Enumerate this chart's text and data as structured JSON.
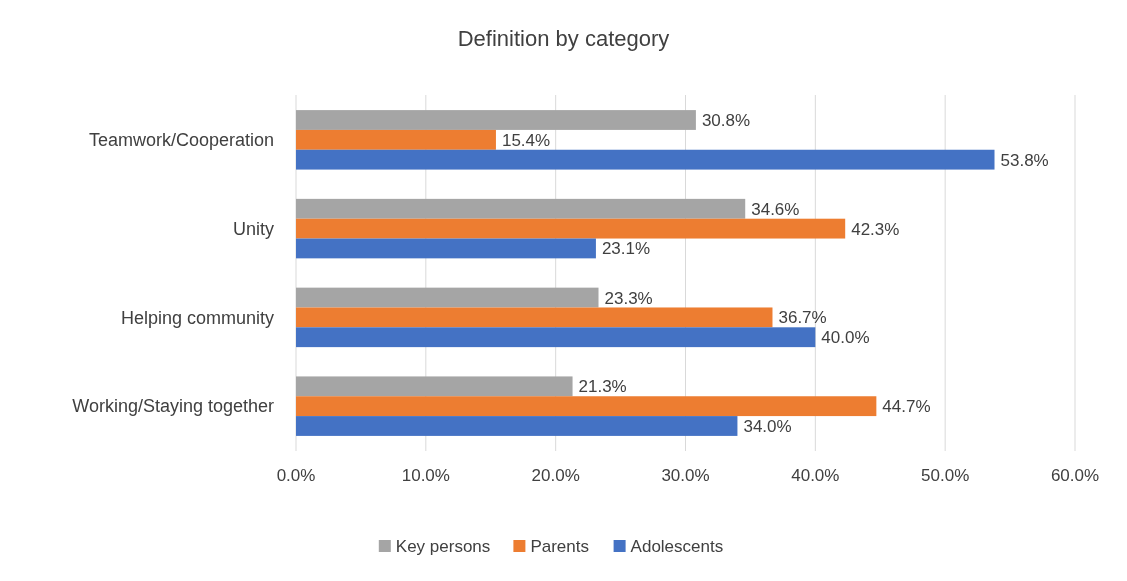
{
  "chart_data": {
    "type": "bar",
    "orientation": "horizontal",
    "title": "Definition by category",
    "categories": [
      "Teamwork/Cooperation",
      "Unity",
      "Helping community",
      "Working/Staying together"
    ],
    "series": [
      {
        "name": "Key persons",
        "color": "#a5a5a5",
        "values": [
          30.8,
          34.6,
          23.3,
          21.3
        ],
        "value_labels": [
          "30.8%",
          "34.6%",
          "23.3%",
          "21.3%"
        ]
      },
      {
        "name": "Parents",
        "color": "#ed7d31",
        "values": [
          15.4,
          42.3,
          36.7,
          44.7
        ],
        "value_labels": [
          "15.4%",
          "42.3%",
          "36.7%",
          "44.7%"
        ]
      },
      {
        "name": "Adolescents",
        "color": "#4472c4",
        "values": [
          53.8,
          23.1,
          40.0,
          34.0
        ],
        "value_labels": [
          "53.8%",
          "23.1%",
          "40.0%",
          "34.0%"
        ]
      }
    ],
    "xlim": [
      0,
      60
    ],
    "xticks": [
      {
        "value": 0,
        "label": "0.0%"
      },
      {
        "value": 10,
        "label": "10.0%"
      },
      {
        "value": 20,
        "label": "20.0%"
      },
      {
        "value": 30,
        "label": "30.0%"
      },
      {
        "value": 40,
        "label": "40.0%"
      },
      {
        "value": 50,
        "label": "50.0%"
      },
      {
        "value": 60,
        "label": "60.0%"
      }
    ],
    "grid": "x",
    "legend": "bottom"
  }
}
